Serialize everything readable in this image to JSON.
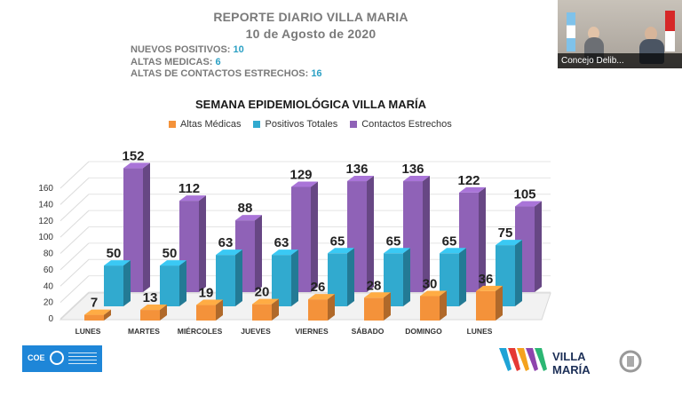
{
  "report": {
    "title": "REPORTE DIARIO VILLA MARIA",
    "date": "10 de Agosto de 2020",
    "stats": [
      {
        "label": "NUEVOS POSITIVOS:",
        "value": "10"
      },
      {
        "label": "ALTAS MEDICAS:",
        "value": "6"
      },
      {
        "label": "ALTAS DE CONTACTOS ESTRECHOS:",
        "value": "16"
      }
    ]
  },
  "video": {
    "caption": "Concejo Delib..."
  },
  "colors": {
    "altas": "#f4923a",
    "positivos": "#31aacf",
    "contactos": "#8f62b7"
  },
  "chart_data": {
    "type": "bar",
    "title": "SEMANA EPIDEMIOLÓGICA VILLA MARÍA",
    "categories": [
      "LUNES",
      "MARTES",
      "MIÉRCOLES",
      "JUEVES",
      "VIERNES",
      "SÁBADO",
      "DOMINGO",
      "LUNES"
    ],
    "series": [
      {
        "name": "Altas Médicas",
        "values": [
          7,
          13,
          19,
          20,
          26,
          28,
          30,
          36
        ]
      },
      {
        "name": "Positivos Totales",
        "values": [
          50,
          50,
          63,
          63,
          65,
          65,
          65,
          75
        ]
      },
      {
        "name": "Contactos Estrechos",
        "values": [
          152,
          112,
          88,
          129,
          136,
          136,
          122,
          105
        ]
      }
    ],
    "ylim": [
      0,
      160
    ],
    "yticks": [
      "0",
      "20",
      "40",
      "60",
      "80",
      "100",
      "120",
      "140",
      "160"
    ],
    "legend_position": "top",
    "style": "3d-depth"
  }
}
